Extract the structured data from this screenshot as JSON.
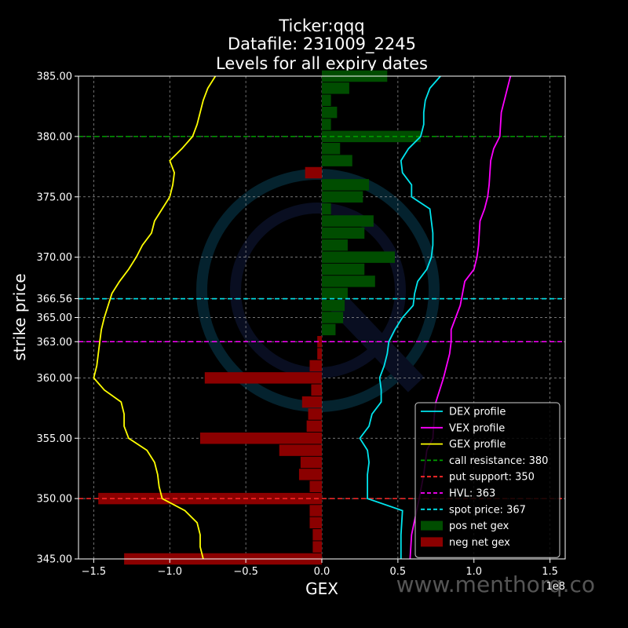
{
  "chart_data": {
    "type": "bar",
    "orientation": "horizontal",
    "title_lines": [
      "Ticker:qqq",
      "Datafile: 231009_2245",
      "Levels for all expiry dates"
    ],
    "xlabel": "GEX",
    "ylabel": "strike price",
    "x_multiplier_label": "1e8",
    "xlim": [
      -1.6,
      1.6
    ],
    "ylim": [
      345,
      385
    ],
    "x_ticks": [
      -1.5,
      -1.0,
      -0.5,
      0.0,
      0.5,
      1.0,
      1.5
    ],
    "x_tick_labels": [
      "−1.5",
      "−1.0",
      "−0.5",
      "0.0",
      "0.5",
      "1.0",
      "1.5"
    ],
    "y_ticks": [
      345,
      350,
      355,
      360,
      363,
      365,
      366.56,
      370,
      375,
      380,
      385
    ],
    "y_tick_labels": [
      "345.00",
      "350.00",
      "355.00",
      "360.00",
      "363.00",
      "365.00",
      "366.56",
      "370.00",
      "375.00",
      "380.00",
      "385.00"
    ],
    "grid": true,
    "legend_placement": "lower-right",
    "legend": [
      {
        "label": "DEX profile",
        "kind": "line",
        "color": "#00e5ee",
        "dash": false
      },
      {
        "label": "VEX profile",
        "kind": "line",
        "color": "#ff00ff",
        "dash": false
      },
      {
        "label": "GEX profile",
        "kind": "line",
        "color": "#ffff00",
        "dash": false
      },
      {
        "label": "call resistance: 380",
        "kind": "line",
        "color": "#00a000",
        "dash": true
      },
      {
        "label": "put support: 350",
        "kind": "line",
        "color": "#ff2a2a",
        "dash": true
      },
      {
        "label": "HVL: 363",
        "kind": "line",
        "color": "#ff00ff",
        "dash": true
      },
      {
        "label": "spot price: 367",
        "kind": "line",
        "color": "#00e5ee",
        "dash": true
      },
      {
        "label": "pos net gex",
        "kind": "patch",
        "color": "#004d00"
      },
      {
        "label": "neg net gex",
        "kind": "patch",
        "color": "#8b0000"
      }
    ],
    "levels": [
      {
        "name": "call resistance",
        "y": 380,
        "color": "#00a000"
      },
      {
        "name": "put support",
        "y": 350,
        "color": "#ff2a2a"
      },
      {
        "name": "HVL",
        "y": 363,
        "color": "#ff00ff"
      },
      {
        "name": "spot price",
        "y": 366.56,
        "color": "#00e5ee"
      }
    ],
    "bars": [
      {
        "strike": 345,
        "gex": -1.3
      },
      {
        "strike": 346,
        "gex": -0.06
      },
      {
        "strike": 347,
        "gex": -0.06
      },
      {
        "strike": 348,
        "gex": -0.08
      },
      {
        "strike": 349,
        "gex": -0.08
      },
      {
        "strike": 350,
        "gex": -1.47
      },
      {
        "strike": 351,
        "gex": -0.08
      },
      {
        "strike": 352,
        "gex": -0.15
      },
      {
        "strike": 353,
        "gex": -0.14
      },
      {
        "strike": 354,
        "gex": -0.28
      },
      {
        "strike": 355,
        "gex": -0.8
      },
      {
        "strike": 356,
        "gex": -0.1
      },
      {
        "strike": 357,
        "gex": -0.09
      },
      {
        "strike": 358,
        "gex": -0.13
      },
      {
        "strike": 359,
        "gex": -0.07
      },
      {
        "strike": 360,
        "gex": -0.77
      },
      {
        "strike": 361,
        "gex": -0.08
      },
      {
        "strike": 362,
        "gex": -0.03
      },
      {
        "strike": 363,
        "gex": -0.03
      },
      {
        "strike": 364,
        "gex": 0.09
      },
      {
        "strike": 365,
        "gex": 0.14
      },
      {
        "strike": 366,
        "gex": 0.15
      },
      {
        "strike": 367,
        "gex": 0.17
      },
      {
        "strike": 368,
        "gex": 0.35
      },
      {
        "strike": 369,
        "gex": 0.28
      },
      {
        "strike": 370,
        "gex": 0.48
      },
      {
        "strike": 371,
        "gex": 0.17
      },
      {
        "strike": 372,
        "gex": 0.28
      },
      {
        "strike": 373,
        "gex": 0.34
      },
      {
        "strike": 374,
        "gex": 0.06
      },
      {
        "strike": 375,
        "gex": 0.27
      },
      {
        "strike": 376,
        "gex": 0.31
      },
      {
        "strike": 377,
        "gex": -0.11
      },
      {
        "strike": 378,
        "gex": 0.2
      },
      {
        "strike": 379,
        "gex": 0.12
      },
      {
        "strike": 380,
        "gex": 0.65
      },
      {
        "strike": 381,
        "gex": 0.06
      },
      {
        "strike": 382,
        "gex": 0.1
      },
      {
        "strike": 383,
        "gex": 0.06
      },
      {
        "strike": 384,
        "gex": 0.18
      },
      {
        "strike": 385,
        "gex": 0.43
      }
    ],
    "series": [
      {
        "name": "DEX profile",
        "color": "#00e5ee",
        "points": [
          [
            0.52,
            345
          ],
          [
            0.52,
            347
          ],
          [
            0.53,
            349
          ],
          [
            0.3,
            350
          ],
          [
            0.3,
            351
          ],
          [
            0.3,
            352
          ],
          [
            0.31,
            353
          ],
          [
            0.3,
            354
          ],
          [
            0.25,
            355
          ],
          [
            0.31,
            356
          ],
          [
            0.33,
            357
          ],
          [
            0.39,
            358
          ],
          [
            0.39,
            359
          ],
          [
            0.38,
            360
          ],
          [
            0.41,
            361
          ],
          [
            0.43,
            362
          ],
          [
            0.44,
            363
          ],
          [
            0.48,
            364
          ],
          [
            0.53,
            365
          ],
          [
            0.6,
            366
          ],
          [
            0.61,
            367
          ],
          [
            0.63,
            368
          ],
          [
            0.69,
            369
          ],
          [
            0.72,
            370
          ],
          [
            0.73,
            371
          ],
          [
            0.73,
            372
          ],
          [
            0.72,
            373
          ],
          [
            0.71,
            374
          ],
          [
            0.59,
            375
          ],
          [
            0.59,
            376
          ],
          [
            0.53,
            377
          ],
          [
            0.52,
            378
          ],
          [
            0.57,
            379
          ],
          [
            0.65,
            380
          ],
          [
            0.67,
            381
          ],
          [
            0.67,
            382
          ],
          [
            0.68,
            383
          ],
          [
            0.71,
            384
          ],
          [
            0.78,
            385
          ]
        ]
      },
      {
        "name": "VEX profile",
        "color": "#ff00ff",
        "points": [
          [
            0.58,
            345
          ],
          [
            0.59,
            347
          ],
          [
            0.64,
            350
          ],
          [
            0.67,
            352
          ],
          [
            0.69,
            354
          ],
          [
            0.73,
            355
          ],
          [
            0.74,
            357
          ],
          [
            0.75,
            358
          ],
          [
            0.8,
            360
          ],
          [
            0.84,
            362
          ],
          [
            0.85,
            363
          ],
          [
            0.85,
            364
          ],
          [
            0.88,
            365
          ],
          [
            0.91,
            366
          ],
          [
            0.94,
            368
          ],
          [
            1.0,
            369
          ],
          [
            1.02,
            370
          ],
          [
            1.03,
            371
          ],
          [
            1.04,
            373
          ],
          [
            1.07,
            374
          ],
          [
            1.09,
            375
          ],
          [
            1.1,
            376
          ],
          [
            1.11,
            378
          ],
          [
            1.13,
            379
          ],
          [
            1.17,
            380
          ],
          [
            1.18,
            382
          ],
          [
            1.2,
            383
          ],
          [
            1.22,
            384
          ],
          [
            1.24,
            385
          ]
        ]
      },
      {
        "name": "GEX profile",
        "color": "#ffff00",
        "points": [
          [
            -0.78,
            345
          ],
          [
            -0.8,
            346
          ],
          [
            -0.8,
            347
          ],
          [
            -0.82,
            348
          ],
          [
            -0.9,
            349
          ],
          [
            -1.05,
            350
          ],
          [
            -1.07,
            351
          ],
          [
            -1.08,
            352
          ],
          [
            -1.1,
            353
          ],
          [
            -1.15,
            354
          ],
          [
            -1.27,
            355
          ],
          [
            -1.3,
            356
          ],
          [
            -1.3,
            357
          ],
          [
            -1.32,
            358
          ],
          [
            -1.43,
            359
          ],
          [
            -1.5,
            360
          ],
          [
            -1.48,
            361
          ],
          [
            -1.47,
            362
          ],
          [
            -1.46,
            363
          ],
          [
            -1.45,
            364
          ],
          [
            -1.43,
            365
          ],
          [
            -1.38,
            367
          ],
          [
            -1.33,
            368
          ],
          [
            -1.27,
            369
          ],
          [
            -1.22,
            370
          ],
          [
            -1.18,
            371
          ],
          [
            -1.12,
            372
          ],
          [
            -1.1,
            373
          ],
          [
            -1.05,
            374
          ],
          [
            -1.0,
            375
          ],
          [
            -0.98,
            376
          ],
          [
            -0.97,
            377
          ],
          [
            -1.0,
            378
          ],
          [
            -0.92,
            379
          ],
          [
            -0.85,
            380
          ],
          [
            -0.82,
            381
          ],
          [
            -0.8,
            382
          ],
          [
            -0.78,
            383
          ],
          [
            -0.75,
            384
          ],
          [
            -0.7,
            385
          ]
        ]
      }
    ]
  },
  "watermark": "www.menthorq.co"
}
